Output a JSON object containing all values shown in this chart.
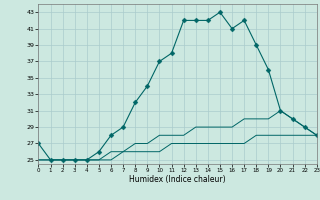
{
  "xlabel": "Humidex (Indice chaleur)",
  "x_values": [
    0,
    1,
    2,
    3,
    4,
    5,
    6,
    7,
    8,
    9,
    10,
    11,
    12,
    13,
    14,
    15,
    16,
    17,
    18,
    19,
    20,
    21,
    22,
    23
  ],
  "line1": [
    27,
    25,
    25,
    25,
    25,
    26,
    28,
    29,
    32,
    34,
    37,
    38,
    42,
    42,
    42,
    43,
    41,
    42,
    39,
    36,
    31,
    30,
    29,
    28
  ],
  "line2": [
    25,
    25,
    25,
    25,
    25,
    25,
    26,
    26,
    27,
    27,
    28,
    28,
    28,
    29,
    29,
    29,
    29,
    30,
    30,
    30,
    31,
    30,
    29,
    28
  ],
  "line3": [
    25,
    25,
    25,
    25,
    25,
    25,
    25,
    26,
    26,
    26,
    26,
    27,
    27,
    27,
    27,
    27,
    27,
    27,
    28,
    28,
    28,
    28,
    28,
    28
  ],
  "bg_color": "#cce8e0",
  "grid_color": "#aacccc",
  "line_color": "#006666",
  "marker_style": "D",
  "marker_size": 2.5,
  "ylim": [
    24.5,
    44
  ],
  "xlim": [
    0,
    23
  ],
  "yticks": [
    25,
    27,
    29,
    31,
    33,
    35,
    37,
    39,
    41,
    43
  ],
  "xticks": [
    0,
    1,
    2,
    3,
    4,
    5,
    6,
    7,
    8,
    9,
    10,
    11,
    12,
    13,
    14,
    15,
    16,
    17,
    18,
    19,
    20,
    21,
    22,
    23
  ]
}
